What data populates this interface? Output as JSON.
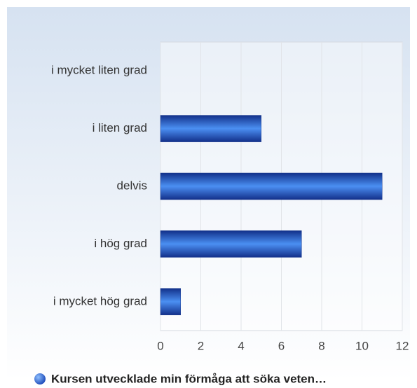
{
  "chart_data": {
    "type": "bar",
    "orientation": "horizontal",
    "categories": [
      "i mycket liten grad",
      "i liten grad",
      "delvis",
      "i hög grad",
      "i mycket hög grad"
    ],
    "series": [
      {
        "name": "Kursen utvecklade min förmåga att söka veten…",
        "color": "#2f6be0",
        "values": [
          0,
          5,
          11,
          7,
          1
        ]
      }
    ],
    "xlim": [
      0,
      12
    ],
    "xticks": [
      0,
      2,
      4,
      6,
      8,
      10,
      12
    ],
    "grid": true
  }
}
